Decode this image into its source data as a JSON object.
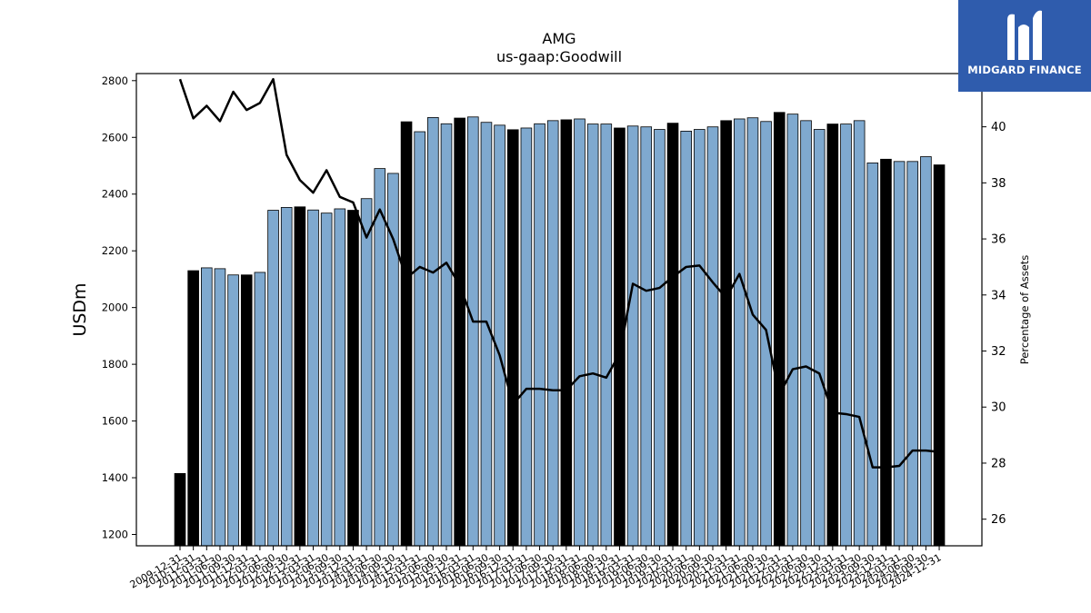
{
  "brand": {
    "name": "MIDGARD FINANCE",
    "color": "#2f5cad"
  },
  "chart_data": {
    "type": "bar",
    "title": "AMG",
    "subtitle": "us-gaap:Goodwill",
    "ylabel": "USDm",
    "y2label": "Percentage of Assets",
    "ylim": [
      1160,
      2825
    ],
    "y2lim": [
      25.05,
      41.9
    ],
    "yticks": [
      1200,
      1400,
      1600,
      1800,
      2000,
      2200,
      2400,
      2600,
      2800
    ],
    "y2ticks": [
      26,
      28,
      30,
      32,
      34,
      36,
      38,
      40
    ],
    "colors": {
      "annual_bar": "#000000",
      "quarter_bar": "#7fa9cf",
      "line": "#000000"
    },
    "categories": [
      "2009-12-31",
      "2010-12-31",
      "2011-03-31",
      "2011-06-30",
      "2011-09-30",
      "2011-12-31",
      "2012-03-31",
      "2012-06-30",
      "2012-09-30",
      "2012-12-31",
      "2013-03-31",
      "2013-06-30",
      "2013-09-30",
      "2013-12-31",
      "2014-03-31",
      "2014-06-30",
      "2014-09-30",
      "2014-12-31",
      "2015-03-31",
      "2015-06-30",
      "2015-09-30",
      "2015-12-31",
      "2016-03-31",
      "2016-06-30",
      "2016-09-30",
      "2016-12-31",
      "2017-03-31",
      "2017-06-30",
      "2017-09-30",
      "2017-12-31",
      "2018-03-31",
      "2018-06-30",
      "2018-09-30",
      "2018-12-31",
      "2019-03-31",
      "2019-06-30",
      "2019-09-30",
      "2019-12-31",
      "2020-03-31",
      "2020-06-30",
      "2020-09-30",
      "2020-12-31",
      "2021-03-31",
      "2021-06-30",
      "2021-09-30",
      "2021-12-31",
      "2022-03-31",
      "2022-06-30",
      "2022-09-30",
      "2022-12-31",
      "2023-03-31",
      "2023-06-30",
      "2023-09-30",
      "2023-12-31",
      "2024-03-31",
      "2024-06-30",
      "2024-09-30",
      "2024-12-31"
    ],
    "xtick_labels": [
      "2009-12-31",
      "2010-12-31",
      "2011-03-31",
      "2011-06-30",
      "2011-09-30",
      "2011-12-31",
      "2012-03-31",
      "2012-06-30",
      "2012-09-30",
      "2012-12-31",
      "2013-03-31",
      "2013-06-30",
      "2013-09-30",
      "2013-12-31",
      "2014-03-31",
      "2014-06-30",
      "2014-09-30",
      "2014-12-31",
      "2015-03-31",
      "2015-06-30",
      "2015-09-30",
      "2015-12-31",
      "2016-03-31",
      "2016-06-30",
      "2016-09-30",
      "2016-12-31",
      "2017-03-31",
      "2017-06-30",
      "2017-09-30",
      "2017-12-31",
      "2018-03-31",
      "2018-06-30",
      "2018-09-30",
      "2018-12-31",
      "2019-03-31",
      "2019-06-30",
      "2019-09-30",
      "2019-12-31",
      "2020-03-31",
      "2020-06-30",
      "2020-09-30",
      "2020-12-31",
      "2021-03-31",
      "2021-06-30",
      "2021-09-30",
      "2021-12-31",
      "2022-03-31",
      "2022-06-30",
      "2022-09-30",
      "2022-12-31",
      "2023-03-31",
      "2023-06-30",
      "2023-09-30",
      "2023-12-31",
      "2024-03-31",
      "2024-06-30",
      "2024-09-30",
      "2024-12-31"
    ],
    "annual": [
      true,
      true,
      false,
      false,
      false,
      true,
      false,
      false,
      false,
      true,
      false,
      false,
      false,
      true,
      false,
      false,
      false,
      true,
      false,
      false,
      false,
      true,
      false,
      false,
      false,
      true,
      false,
      false,
      false,
      true,
      false,
      false,
      false,
      true,
      false,
      false,
      false,
      true,
      false,
      false,
      false,
      true,
      false,
      false,
      false,
      true,
      false,
      false,
      false,
      true,
      false,
      false,
      false,
      true,
      false,
      false,
      false,
      true
    ],
    "series": [
      {
        "name": "Goodwill",
        "kind": "bar",
        "values": [
          1415,
          2130,
          2140,
          2137,
          2115,
          2115,
          2124,
          2343,
          2353,
          2355,
          2344,
          2333,
          2348,
          2343,
          2384,
          2490,
          2473,
          2655,
          2620,
          2670,
          2648,
          2668,
          2672,
          2653,
          2643,
          2627,
          2633,
          2648,
          2659,
          2662,
          2665,
          2647,
          2647,
          2633,
          2640,
          2637,
          2628,
          2650,
          2622,
          2628,
          2637,
          2659,
          2665,
          2669,
          2656,
          2688,
          2682,
          2659,
          2628,
          2647,
          2647,
          2659,
          2510,
          2523,
          2515,
          2515,
          2532,
          2503
        ]
      },
      {
        "name": "Percentage of Assets",
        "kind": "line",
        "axis": "right",
        "values": [
          41.7,
          40.3,
          40.75,
          40.2,
          41.25,
          40.6,
          40.85,
          41.7,
          39.0,
          38.1,
          37.65,
          38.45,
          37.5,
          37.3,
          36.05,
          37.05,
          36.0,
          34.6,
          35.0,
          34.8,
          35.15,
          34.35,
          33.05,
          33.05,
          31.85,
          30.1,
          30.65,
          30.65,
          30.6,
          30.6,
          31.1,
          31.2,
          31.05,
          31.9,
          34.4,
          34.15,
          34.25,
          34.65,
          35.0,
          35.05,
          34.45,
          33.9,
          34.75,
          33.3,
          32.75,
          30.45,
          31.35,
          31.45,
          31.2,
          29.8,
          29.75,
          29.65,
          27.85,
          27.85,
          27.9,
          28.45,
          28.45,
          28.4
        ]
      }
    ],
    "legend": "none",
    "grid": false
  }
}
